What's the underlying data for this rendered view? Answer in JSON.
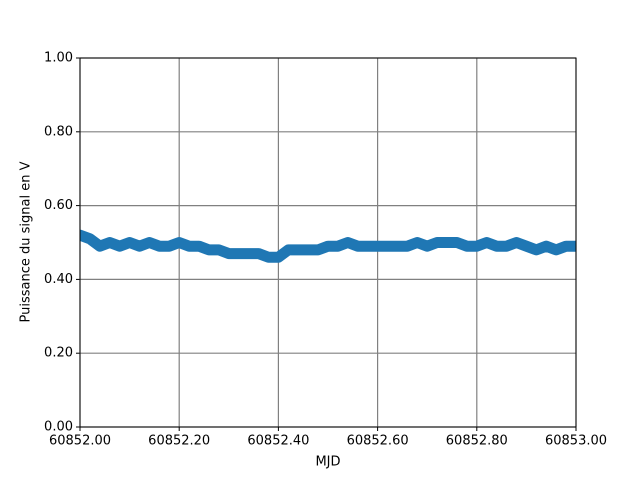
{
  "chart_data": {
    "type": "line",
    "xlabel": "MJD",
    "ylabel": "Puissance du signal en V",
    "color": "#1f77b4",
    "grid": true,
    "xlim": [
      60852.0,
      60853.0
    ],
    "ylim": [
      0.0,
      1.0
    ],
    "xticks": [
      {
        "value": 60852.0,
        "label": "60852.00"
      },
      {
        "value": 60852.2,
        "label": "60852.20"
      },
      {
        "value": 60852.4,
        "label": "60852.40"
      },
      {
        "value": 60852.6,
        "label": "60852.60"
      },
      {
        "value": 60852.8,
        "label": "60852.80"
      },
      {
        "value": 60853.0,
        "label": "60853.00"
      }
    ],
    "yticks": [
      {
        "value": 0.0,
        "label": "0.00"
      },
      {
        "value": 0.2,
        "label": "0.20"
      },
      {
        "value": 0.4,
        "label": "0.40"
      },
      {
        "value": 0.6,
        "label": "0.60"
      },
      {
        "value": 0.8,
        "label": "0.80"
      },
      {
        "value": 1.0,
        "label": "1.00"
      }
    ],
    "x": [
      60852.0,
      60852.02,
      60852.04,
      60852.06,
      60852.08,
      60852.1,
      60852.12,
      60852.14,
      60852.16,
      60852.18,
      60852.2,
      60852.22,
      60852.24,
      60852.26,
      60852.28,
      60852.3,
      60852.32,
      60852.34,
      60852.36,
      60852.38,
      60852.4,
      60852.42,
      60852.44,
      60852.46,
      60852.48,
      60852.5,
      60852.52,
      60852.54,
      60852.56,
      60852.58,
      60852.6,
      60852.62,
      60852.64,
      60852.66,
      60852.68,
      60852.7,
      60852.72,
      60852.74,
      60852.76,
      60852.78,
      60852.8,
      60852.82,
      60852.84,
      60852.86,
      60852.88,
      60852.9,
      60852.92,
      60852.94,
      60852.96,
      60852.98,
      60853.0
    ],
    "values": [
      0.52,
      0.51,
      0.49,
      0.5,
      0.49,
      0.5,
      0.49,
      0.5,
      0.49,
      0.49,
      0.5,
      0.49,
      0.49,
      0.48,
      0.48,
      0.47,
      0.47,
      0.47,
      0.47,
      0.46,
      0.46,
      0.48,
      0.48,
      0.48,
      0.48,
      0.49,
      0.49,
      0.5,
      0.49,
      0.49,
      0.49,
      0.49,
      0.49,
      0.49,
      0.5,
      0.49,
      0.5,
      0.5,
      0.5,
      0.49,
      0.49,
      0.5,
      0.49,
      0.49,
      0.5,
      0.49,
      0.48,
      0.49,
      0.48,
      0.49,
      0.49
    ]
  }
}
